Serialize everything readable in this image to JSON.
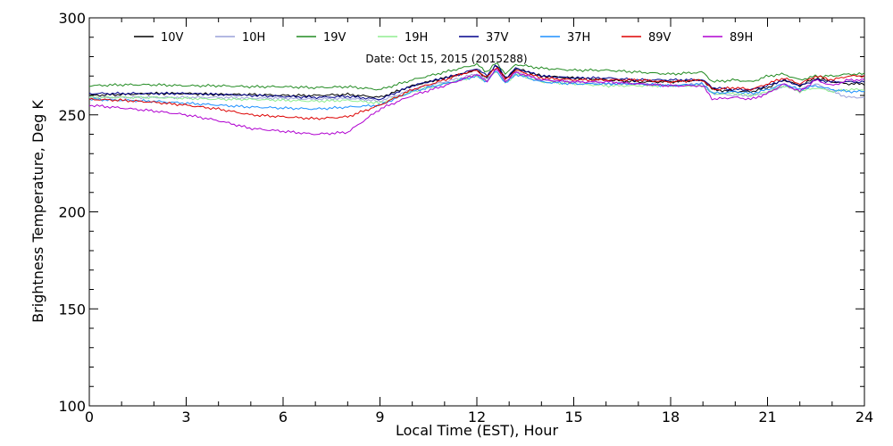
{
  "chart_data": {
    "type": "line",
    "xlabel": "Local Time (EST), Hour",
    "ylabel": "Brightness Temperature, Deg K",
    "annotation": "Date: Oct 15, 2015 (2015288)",
    "xlim": [
      0,
      24
    ],
    "ylim": [
      100,
      300
    ],
    "xticks": [
      0,
      3,
      6,
      9,
      12,
      15,
      18,
      21,
      24
    ],
    "yticks": [
      100,
      150,
      200,
      250,
      300
    ],
    "grid": false,
    "legend_placement": "top",
    "x": [
      0,
      1,
      2,
      3,
      4,
      5,
      6,
      7,
      8,
      9,
      10,
      11,
      11.5,
      12,
      12.3,
      12.6,
      12.9,
      13.2,
      14,
      15,
      16,
      17,
      18,
      19,
      19.3,
      20,
      20.5,
      21,
      21.5,
      22,
      22.5,
      23,
      23.5,
      24
    ],
    "series": [
      {
        "name": "10V",
        "color": "#000000",
        "values": [
          260,
          260.5,
          261,
          261,
          260.5,
          260.5,
          260,
          260,
          260.5,
          259,
          265,
          269,
          271,
          273,
          269,
          276,
          268,
          274,
          270,
          269,
          268,
          267,
          267,
          268,
          263,
          262,
          262,
          264,
          268,
          265,
          269,
          267,
          266,
          266
        ]
      },
      {
        "name": "10H",
        "color": "#9aa0d8",
        "values": [
          259,
          259,
          259,
          259,
          259,
          258.5,
          258.5,
          258,
          258.5,
          257,
          263,
          267,
          269,
          271,
          268,
          274,
          267,
          272,
          268,
          267,
          266,
          266,
          265,
          266,
          261,
          260,
          260,
          261,
          265,
          263,
          266,
          262,
          259,
          259
        ]
      },
      {
        "name": "19V",
        "color": "#228B22",
        "values": [
          265,
          265.5,
          265.5,
          265,
          265,
          264.5,
          264.5,
          264,
          264.5,
          263,
          268,
          272,
          274,
          276,
          272,
          277,
          271,
          276,
          274,
          273,
          273,
          272,
          271,
          272,
          267,
          268,
          267,
          270,
          271,
          268,
          270,
          270,
          271,
          271
        ]
      },
      {
        "name": "19H",
        "color": "#90EE90",
        "values": [
          259,
          259,
          259,
          258.5,
          258,
          258,
          257.5,
          257,
          257.5,
          256,
          262,
          266,
          268,
          270,
          267,
          273,
          266,
          271,
          267,
          266,
          265,
          265,
          265,
          265,
          261,
          261,
          260,
          262,
          265,
          262,
          264,
          262,
          263,
          263
        ]
      },
      {
        "name": "37V",
        "color": "#00008B",
        "values": [
          261,
          261,
          261,
          261,
          260.5,
          260,
          259.5,
          259,
          259.5,
          258,
          265,
          269,
          271,
          274,
          270,
          276,
          269,
          274,
          270,
          269,
          269,
          268,
          268,
          268,
          264,
          263,
          263,
          265,
          268,
          265,
          268,
          267,
          267,
          267
        ]
      },
      {
        "name": "37H",
        "color": "#1E90FF",
        "values": [
          258,
          257.5,
          257,
          256,
          255,
          254,
          253.5,
          253,
          254,
          255,
          262,
          266,
          268,
          270,
          267,
          273,
          266,
          271,
          267,
          266,
          266,
          266,
          265,
          266,
          261,
          262,
          261,
          263,
          266,
          263,
          265,
          263,
          262,
          262
        ]
      },
      {
        "name": "89V",
        "color": "#DD0000",
        "values": [
          258,
          257.5,
          256.5,
          255,
          253,
          250,
          249,
          248,
          249,
          255,
          263,
          268,
          271,
          273,
          269,
          275,
          268,
          273,
          269,
          268,
          268,
          268,
          267,
          268,
          263,
          264,
          263,
          266,
          269,
          266,
          270,
          268,
          270,
          270
        ]
      },
      {
        "name": "89H",
        "color": "#B000D0",
        "values": [
          255,
          253.5,
          252,
          250,
          247,
          243,
          241.5,
          240,
          241,
          253,
          260,
          265,
          268,
          271,
          267,
          274,
          267,
          272,
          268,
          267,
          267,
          266,
          265,
          265,
          258,
          259,
          258,
          261,
          266,
          262,
          268,
          265,
          268,
          268
        ]
      }
    ]
  }
}
